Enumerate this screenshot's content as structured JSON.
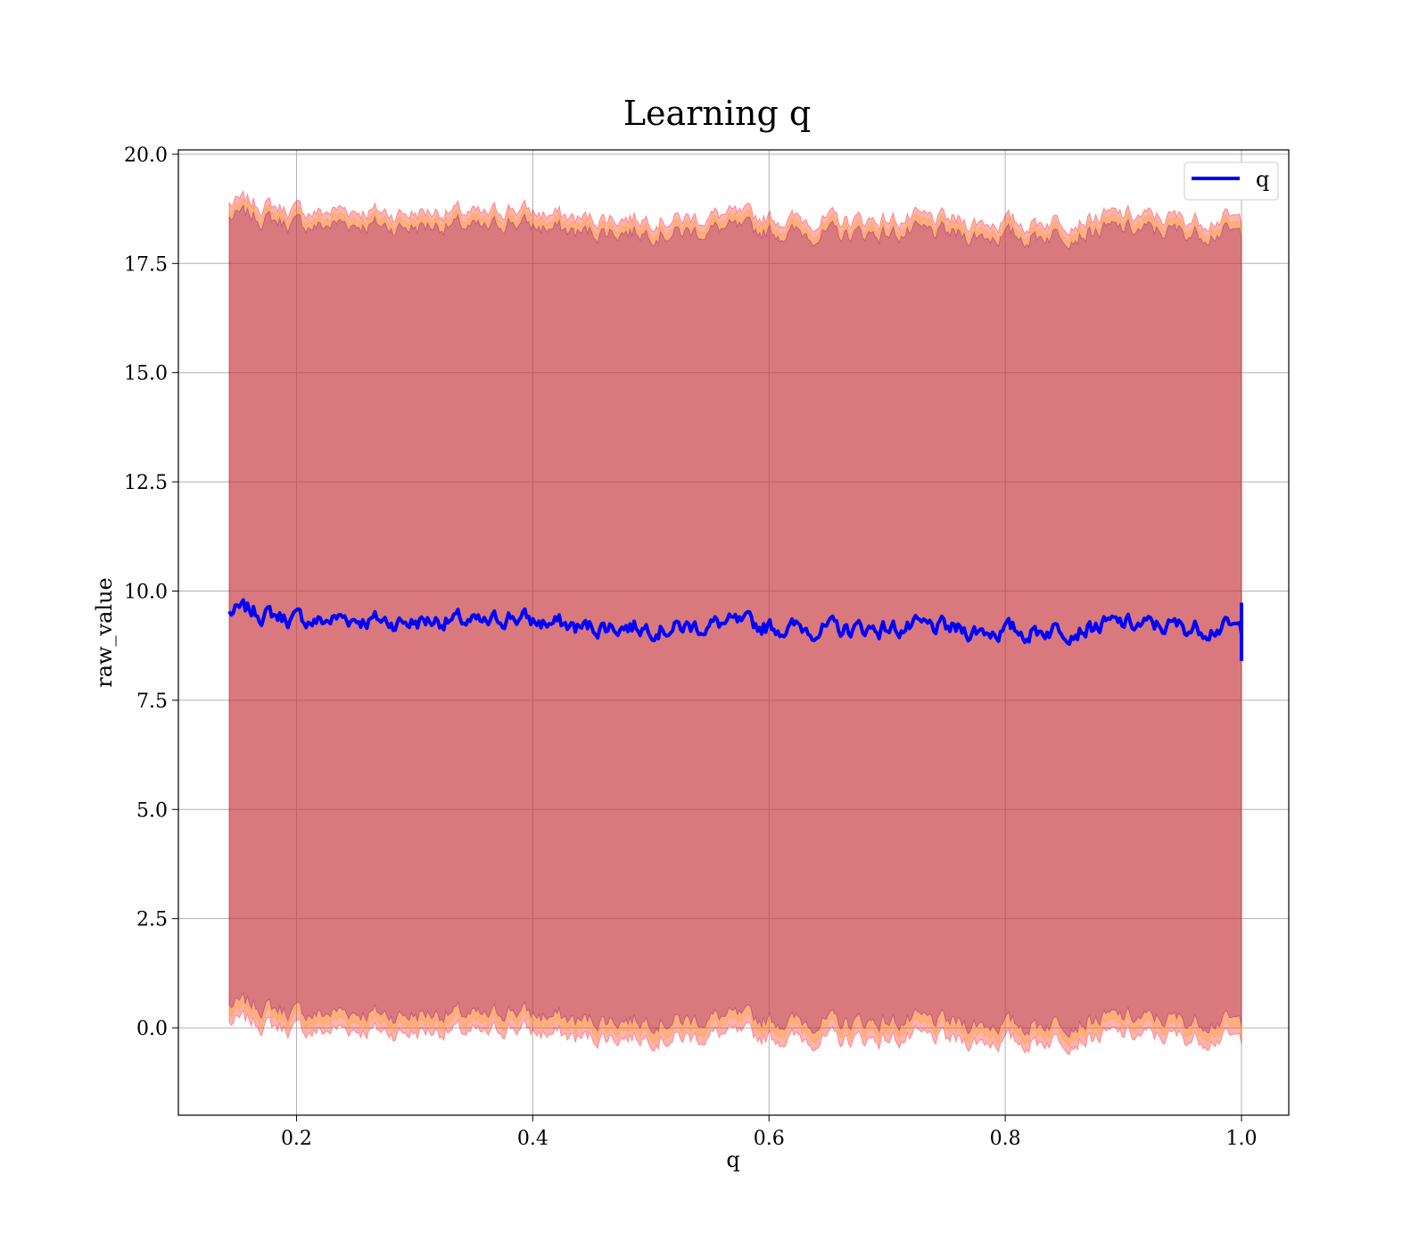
{
  "chart_data": {
    "type": "line",
    "title": "Learning q",
    "xlabel": "q",
    "ylabel": "raw_value",
    "xlim": [
      0.1,
      1.04
    ],
    "ylim": [
      -2.0,
      20.1
    ],
    "x_ticks": [
      "0.2",
      "0.4",
      "0.6",
      "0.8",
      "1.0"
    ],
    "y_ticks": [
      "0.0",
      "2.5",
      "5.0",
      "7.5",
      "10.0",
      "12.5",
      "15.0",
      "17.5",
      "20.0"
    ],
    "grid": true,
    "legend": {
      "position": "top-right",
      "entries": [
        "q"
      ]
    },
    "x_range": [
      0.143,
      1.0
    ],
    "series": [
      {
        "name": "q",
        "color": "#0000ff",
        "x": [
          0.143,
          0.16,
          0.18,
          0.2,
          0.22,
          0.24,
          0.26,
          0.28,
          0.3,
          0.32,
          0.34,
          0.36,
          0.38,
          0.4,
          0.42,
          0.44,
          0.46,
          0.48,
          0.5,
          0.52,
          0.54,
          0.56,
          0.58,
          0.6,
          0.62,
          0.64,
          0.66,
          0.68,
          0.7,
          0.72,
          0.74,
          0.76,
          0.78,
          0.8,
          0.82,
          0.84,
          0.86,
          0.88,
          0.9,
          0.92,
          0.94,
          0.96,
          0.98,
          1.0
        ],
        "values": [
          9.5,
          9.55,
          9.45,
          9.35,
          9.3,
          9.4,
          9.35,
          9.3,
          9.3,
          9.35,
          9.3,
          9.2,
          9.45,
          9.3,
          9.25,
          9.15,
          9.2,
          9.2,
          9.2,
          9.15,
          9.2,
          9.25,
          9.2,
          9.2,
          9.15,
          9.15,
          9.1,
          9.15,
          9.15,
          9.15,
          9.15,
          9.1,
          9.1,
          9.1,
          9.05,
          9.15,
          9.15,
          9.2,
          9.25,
          9.2,
          9.2,
          9.15,
          9.2,
          9.1
        ]
      }
    ],
    "bands": [
      {
        "color": "#ff0000",
        "offset": 9.4
      },
      {
        "color": "#ffa500",
        "offset": 9.2
      },
      {
        "color": "#800080",
        "offset": 9.0
      }
    ]
  }
}
